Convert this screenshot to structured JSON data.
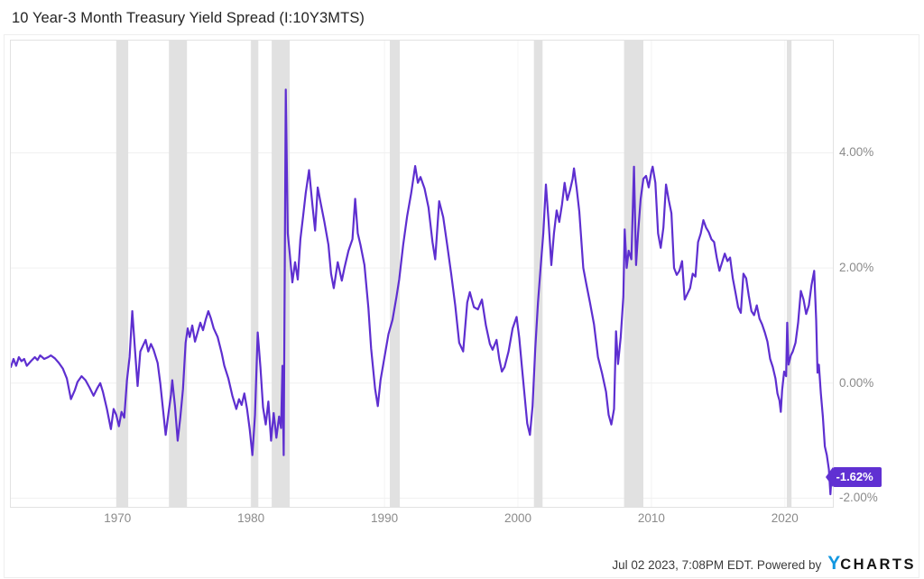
{
  "title": "10 Year-3 Month Treasury Yield Spread (I:10Y3MTS)",
  "footer": {
    "text": "Jul 02 2023, 7:08PM EDT. Powered by",
    "logo_y": "Y",
    "logo_rest": "CHARTS"
  },
  "colors": {
    "line": "#5e2fd0",
    "accent": "#6030d2",
    "recession_band": "#e1e1e1",
    "grid_horizontal": "#f0f0f0",
    "grid_vertical": "#f4f4f4",
    "axis_text": "#8b8b8b",
    "plot_border": "#e2e2e2",
    "logo_blue": "#1297e0"
  },
  "chart_data": {
    "type": "line",
    "title": "10 Year-3 Month Treasury Yield Spread (I:10Y3MTS)",
    "series_name": "10 Year-3 Month Treasury Yield Spread",
    "end_label": "-1.62%",
    "last_value": -1.62,
    "x_range": [
      1962,
      2023.6
    ],
    "ylim": [
      -2.15,
      5.95
    ],
    "grid": true,
    "legend_position": "none",
    "y_ticks": [
      {
        "value": 4,
        "label": "4.00%"
      },
      {
        "value": 2,
        "label": "2.00%"
      },
      {
        "value": 0,
        "label": "0.00%"
      },
      {
        "value": -2,
        "label": "-2.00%"
      }
    ],
    "x_ticks": [
      {
        "value": 1970,
        "label": "1970"
      },
      {
        "value": 1980,
        "label": "1980"
      },
      {
        "value": 1990,
        "label": "1990"
      },
      {
        "value": 2000,
        "label": "2000"
      },
      {
        "value": 2010,
        "label": "2010"
      },
      {
        "value": 2020,
        "label": "2020"
      }
    ],
    "recession_bands": [
      [
        1969.9,
        1970.8
      ],
      [
        1973.85,
        1975.2
      ],
      [
        1980.0,
        1980.55
      ],
      [
        1981.55,
        1982.9
      ],
      [
        1990.4,
        1991.15
      ],
      [
        2001.2,
        2001.85
      ],
      [
        2007.95,
        2009.4
      ],
      [
        2020.15,
        2020.5
      ]
    ],
    "points": [
      [
        1962.0,
        0.28
      ],
      [
        1962.2,
        0.42
      ],
      [
        1962.4,
        0.3
      ],
      [
        1962.6,
        0.45
      ],
      [
        1962.8,
        0.38
      ],
      [
        1963.0,
        0.42
      ],
      [
        1963.2,
        0.3
      ],
      [
        1963.5,
        0.38
      ],
      [
        1963.8,
        0.45
      ],
      [
        1964.0,
        0.4
      ],
      [
        1964.2,
        0.48
      ],
      [
        1964.5,
        0.42
      ],
      [
        1964.8,
        0.45
      ],
      [
        1965.0,
        0.48
      ],
      [
        1965.3,
        0.43
      ],
      [
        1965.6,
        0.35
      ],
      [
        1965.9,
        0.25
      ],
      [
        1966.2,
        0.08
      ],
      [
        1966.5,
        -0.28
      ],
      [
        1966.8,
        -0.12
      ],
      [
        1967.0,
        0.02
      ],
      [
        1967.3,
        0.12
      ],
      [
        1967.6,
        0.05
      ],
      [
        1967.9,
        -0.08
      ],
      [
        1968.2,
        -0.22
      ],
      [
        1968.5,
        -0.08
      ],
      [
        1968.7,
        0.0
      ],
      [
        1968.9,
        -0.15
      ],
      [
        1969.2,
        -0.45
      ],
      [
        1969.5,
        -0.8
      ],
      [
        1969.7,
        -0.45
      ],
      [
        1969.9,
        -0.55
      ],
      [
        1970.1,
        -0.75
      ],
      [
        1970.3,
        -0.5
      ],
      [
        1970.5,
        -0.6
      ],
      [
        1970.7,
        0.05
      ],
      [
        1970.9,
        0.45
      ],
      [
        1971.1,
        1.25
      ],
      [
        1971.3,
        0.6
      ],
      [
        1971.5,
        -0.05
      ],
      [
        1971.7,
        0.55
      ],
      [
        1971.9,
        0.65
      ],
      [
        1972.1,
        0.75
      ],
      [
        1972.3,
        0.55
      ],
      [
        1972.5,
        0.68
      ],
      [
        1972.7,
        0.58
      ],
      [
        1973.0,
        0.35
      ],
      [
        1973.2,
        0.0
      ],
      [
        1973.4,
        -0.45
      ],
      [
        1973.6,
        -0.9
      ],
      [
        1973.8,
        -0.55
      ],
      [
        1974.0,
        -0.2
      ],
      [
        1974.1,
        0.05
      ],
      [
        1974.3,
        -0.4
      ],
      [
        1974.5,
        -1.0
      ],
      [
        1974.7,
        -0.6
      ],
      [
        1974.9,
        -0.1
      ],
      [
        1975.1,
        0.7
      ],
      [
        1975.25,
        0.95
      ],
      [
        1975.4,
        0.8
      ],
      [
        1975.6,
        1.0
      ],
      [
        1975.8,
        0.72
      ],
      [
        1976.0,
        0.88
      ],
      [
        1976.2,
        1.05
      ],
      [
        1976.4,
        0.92
      ],
      [
        1976.6,
        1.1
      ],
      [
        1976.8,
        1.25
      ],
      [
        1977.0,
        1.12
      ],
      [
        1977.2,
        0.95
      ],
      [
        1977.5,
        0.8
      ],
      [
        1977.8,
        0.52
      ],
      [
        1978.0,
        0.3
      ],
      [
        1978.3,
        0.08
      ],
      [
        1978.6,
        -0.22
      ],
      [
        1978.9,
        -0.45
      ],
      [
        1979.1,
        -0.28
      ],
      [
        1979.3,
        -0.38
      ],
      [
        1979.5,
        -0.18
      ],
      [
        1979.7,
        -0.45
      ],
      [
        1979.9,
        -0.8
      ],
      [
        1980.1,
        -1.25
      ],
      [
        1980.3,
        -0.55
      ],
      [
        1980.5,
        0.88
      ],
      [
        1980.7,
        0.28
      ],
      [
        1980.9,
        -0.42
      ],
      [
        1981.1,
        -0.72
      ],
      [
        1981.3,
        -0.32
      ],
      [
        1981.5,
        -1.0
      ],
      [
        1981.7,
        -0.52
      ],
      [
        1981.9,
        -0.95
      ],
      [
        1982.1,
        -0.58
      ],
      [
        1982.25,
        -0.78
      ],
      [
        1982.35,
        0.3
      ],
      [
        1982.45,
        -1.25
      ],
      [
        1982.6,
        5.1
      ],
      [
        1982.75,
        2.6
      ],
      [
        1982.9,
        2.25
      ],
      [
        1983.1,
        1.75
      ],
      [
        1983.3,
        2.1
      ],
      [
        1983.5,
        1.8
      ],
      [
        1983.7,
        2.5
      ],
      [
        1983.9,
        2.9
      ],
      [
        1984.1,
        3.3
      ],
      [
        1984.35,
        3.7
      ],
      [
        1984.6,
        3.1
      ],
      [
        1984.8,
        2.65
      ],
      [
        1985.0,
        3.4
      ],
      [
        1985.2,
        3.15
      ],
      [
        1985.5,
        2.8
      ],
      [
        1985.8,
        2.4
      ],
      [
        1986.0,
        1.9
      ],
      [
        1986.2,
        1.65
      ],
      [
        1986.5,
        2.1
      ],
      [
        1986.8,
        1.78
      ],
      [
        1987.0,
        2.0
      ],
      [
        1987.3,
        2.3
      ],
      [
        1987.6,
        2.5
      ],
      [
        1987.8,
        3.2
      ],
      [
        1988.0,
        2.6
      ],
      [
        1988.2,
        2.4
      ],
      [
        1988.5,
        2.05
      ],
      [
        1988.8,
        1.3
      ],
      [
        1989.0,
        0.6
      ],
      [
        1989.3,
        -0.1
      ],
      [
        1989.5,
        -0.4
      ],
      [
        1989.7,
        0.05
      ],
      [
        1990.0,
        0.45
      ],
      [
        1990.3,
        0.85
      ],
      [
        1990.6,
        1.1
      ],
      [
        1990.9,
        1.5
      ],
      [
        1991.1,
        1.8
      ],
      [
        1991.4,
        2.4
      ],
      [
        1991.7,
        2.9
      ],
      [
        1992.0,
        3.3
      ],
      [
        1992.3,
        3.77
      ],
      [
        1992.5,
        3.48
      ],
      [
        1992.7,
        3.58
      ],
      [
        1993.0,
        3.38
      ],
      [
        1993.3,
        3.05
      ],
      [
        1993.6,
        2.45
      ],
      [
        1993.8,
        2.15
      ],
      [
        1994.1,
        3.16
      ],
      [
        1994.4,
        2.88
      ],
      [
        1994.7,
        2.4
      ],
      [
        1995.0,
        1.9
      ],
      [
        1995.3,
        1.35
      ],
      [
        1995.6,
        0.7
      ],
      [
        1995.9,
        0.55
      ],
      [
        1996.2,
        1.4
      ],
      [
        1996.4,
        1.58
      ],
      [
        1996.7,
        1.32
      ],
      [
        1997.0,
        1.28
      ],
      [
        1997.3,
        1.45
      ],
      [
        1997.6,
        1.0
      ],
      [
        1997.9,
        0.68
      ],
      [
        1998.1,
        0.58
      ],
      [
        1998.4,
        0.75
      ],
      [
        1998.6,
        0.42
      ],
      [
        1998.8,
        0.2
      ],
      [
        1999.0,
        0.28
      ],
      [
        1999.3,
        0.55
      ],
      [
        1999.6,
        0.95
      ],
      [
        1999.9,
        1.15
      ],
      [
        2000.1,
        0.78
      ],
      [
        2000.3,
        0.28
      ],
      [
        2000.5,
        -0.22
      ],
      [
        2000.7,
        -0.7
      ],
      [
        2000.9,
        -0.9
      ],
      [
        2001.1,
        -0.4
      ],
      [
        2001.3,
        0.6
      ],
      [
        2001.5,
        1.4
      ],
      [
        2001.7,
        2.0
      ],
      [
        2001.9,
        2.6
      ],
      [
        2002.1,
        3.45
      ],
      [
        2002.3,
        2.8
      ],
      [
        2002.5,
        2.05
      ],
      [
        2002.7,
        2.6
      ],
      [
        2002.9,
        3.0
      ],
      [
        2003.1,
        2.8
      ],
      [
        2003.3,
        3.1
      ],
      [
        2003.5,
        3.48
      ],
      [
        2003.7,
        3.18
      ],
      [
        2003.9,
        3.35
      ],
      [
        2004.1,
        3.55
      ],
      [
        2004.2,
        3.73
      ],
      [
        2004.4,
        3.38
      ],
      [
        2004.6,
        2.98
      ],
      [
        2004.9,
        2.0
      ],
      [
        2005.1,
        1.75
      ],
      [
        2005.4,
        1.4
      ],
      [
        2005.7,
        1.02
      ],
      [
        2006.0,
        0.45
      ],
      [
        2006.3,
        0.17
      ],
      [
        2006.6,
        -0.15
      ],
      [
        2006.8,
        -0.55
      ],
      [
        2007.0,
        -0.72
      ],
      [
        2007.2,
        -0.45
      ],
      [
        2007.35,
        0.9
      ],
      [
        2007.5,
        0.33
      ],
      [
        2007.7,
        0.8
      ],
      [
        2007.9,
        1.5
      ],
      [
        2008.0,
        2.67
      ],
      [
        2008.15,
        2.0
      ],
      [
        2008.3,
        2.3
      ],
      [
        2008.5,
        2.15
      ],
      [
        2008.7,
        3.76
      ],
      [
        2008.85,
        2.05
      ],
      [
        2009.0,
        2.6
      ],
      [
        2009.2,
        3.2
      ],
      [
        2009.4,
        3.55
      ],
      [
        2009.6,
        3.6
      ],
      [
        2009.8,
        3.4
      ],
      [
        2010.0,
        3.68
      ],
      [
        2010.1,
        3.76
      ],
      [
        2010.3,
        3.48
      ],
      [
        2010.5,
        2.6
      ],
      [
        2010.7,
        2.35
      ],
      [
        2010.9,
        2.7
      ],
      [
        2011.1,
        3.45
      ],
      [
        2011.3,
        3.18
      ],
      [
        2011.5,
        2.95
      ],
      [
        2011.7,
        2.0
      ],
      [
        2011.9,
        1.88
      ],
      [
        2012.1,
        1.95
      ],
      [
        2012.3,
        2.12
      ],
      [
        2012.5,
        1.45
      ],
      [
        2012.7,
        1.55
      ],
      [
        2012.9,
        1.65
      ],
      [
        2013.1,
        1.9
      ],
      [
        2013.3,
        1.85
      ],
      [
        2013.5,
        2.45
      ],
      [
        2013.7,
        2.6
      ],
      [
        2013.9,
        2.83
      ],
      [
        2014.1,
        2.7
      ],
      [
        2014.3,
        2.62
      ],
      [
        2014.5,
        2.5
      ],
      [
        2014.7,
        2.45
      ],
      [
        2014.9,
        2.18
      ],
      [
        2015.1,
        1.95
      ],
      [
        2015.3,
        2.1
      ],
      [
        2015.5,
        2.25
      ],
      [
        2015.7,
        2.12
      ],
      [
        2015.9,
        2.18
      ],
      [
        2016.1,
        1.82
      ],
      [
        2016.3,
        1.58
      ],
      [
        2016.5,
        1.32
      ],
      [
        2016.7,
        1.22
      ],
      [
        2016.9,
        1.9
      ],
      [
        2017.1,
        1.82
      ],
      [
        2017.3,
        1.52
      ],
      [
        2017.5,
        1.25
      ],
      [
        2017.7,
        1.18
      ],
      [
        2017.9,
        1.35
      ],
      [
        2018.1,
        1.12
      ],
      [
        2018.3,
        1.02
      ],
      [
        2018.5,
        0.88
      ],
      [
        2018.7,
        0.72
      ],
      [
        2018.9,
        0.42
      ],
      [
        2019.1,
        0.28
      ],
      [
        2019.3,
        0.08
      ],
      [
        2019.45,
        -0.18
      ],
      [
        2019.6,
        -0.3
      ],
      [
        2019.7,
        -0.5
      ],
      [
        2019.8,
        -0.12
      ],
      [
        2019.95,
        0.2
      ],
      [
        2020.1,
        0.12
      ],
      [
        2020.18,
        1.05
      ],
      [
        2020.28,
        0.32
      ],
      [
        2020.45,
        0.48
      ],
      [
        2020.6,
        0.55
      ],
      [
        2020.8,
        0.7
      ],
      [
        2021.0,
        1.05
      ],
      [
        2021.2,
        1.6
      ],
      [
        2021.4,
        1.45
      ],
      [
        2021.6,
        1.2
      ],
      [
        2021.8,
        1.35
      ],
      [
        2022.0,
        1.7
      ],
      [
        2022.2,
        1.95
      ],
      [
        2022.35,
        1.1
      ],
      [
        2022.45,
        0.18
      ],
      [
        2022.55,
        0.32
      ],
      [
        2022.7,
        -0.18
      ],
      [
        2022.85,
        -0.58
      ],
      [
        2023.0,
        -1.1
      ],
      [
        2023.15,
        -1.25
      ],
      [
        2023.3,
        -1.5
      ],
      [
        2023.42,
        -1.93
      ],
      [
        2023.5,
        -1.62
      ]
    ]
  }
}
